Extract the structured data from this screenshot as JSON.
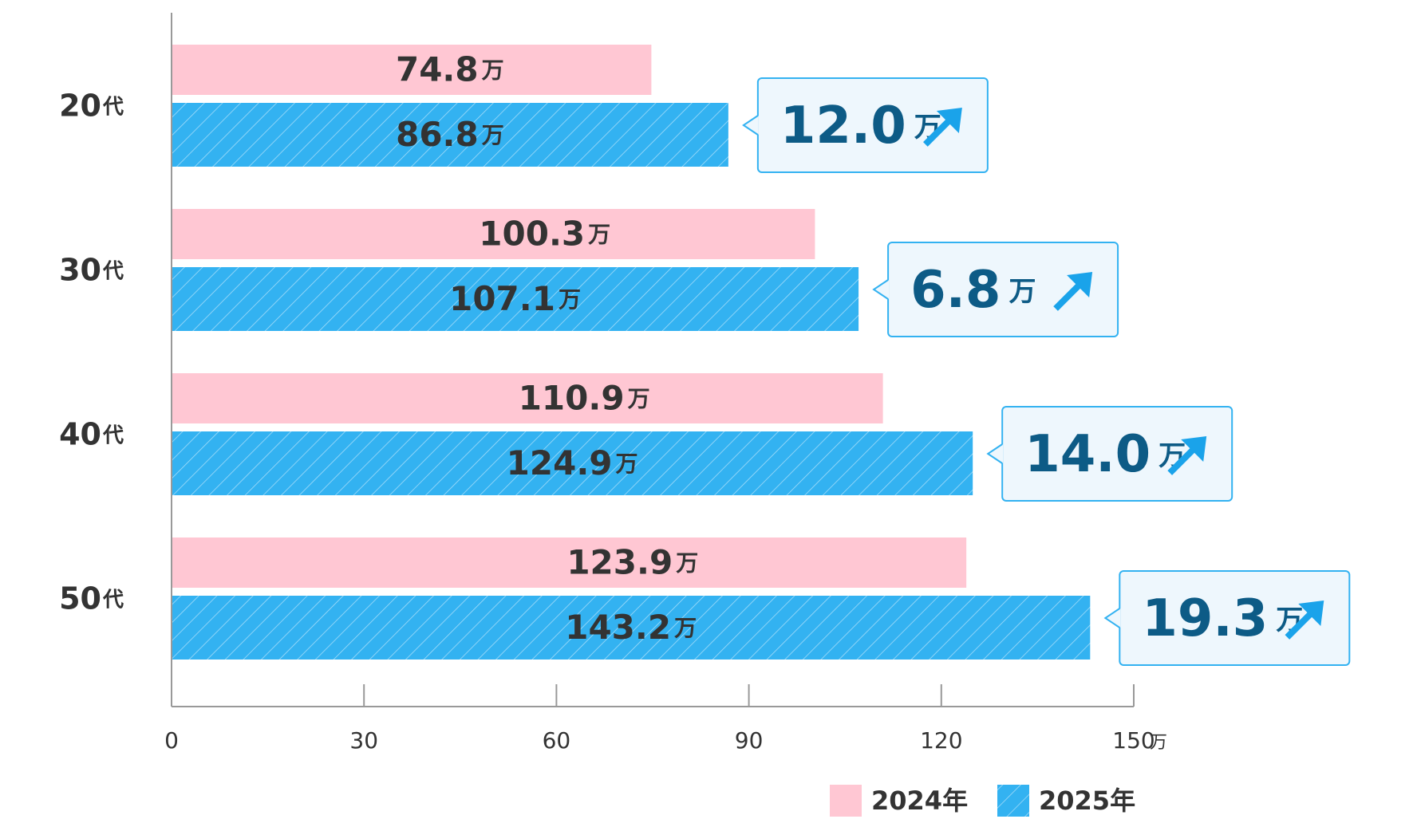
{
  "chart_data": {
    "type": "bar",
    "orientation": "horizontal",
    "categories": [
      "20代",
      "30代",
      "40代",
      "50代"
    ],
    "series": [
      {
        "name": "2024年",
        "values": [
          74.8,
          100.3,
          110.9,
          123.9
        ],
        "color": "#FFC7D3",
        "pattern": "solid"
      },
      {
        "name": "2025年",
        "values": [
          86.8,
          107.1,
          124.9,
          143.2
        ],
        "color": "#33B2F1",
        "pattern": "hatched"
      }
    ],
    "value_unit": "万",
    "x_ticks": [
      0,
      30,
      60,
      90,
      120,
      150
    ],
    "x_tick_labels": [
      "0",
      "30",
      "60",
      "90",
      "120",
      "150"
    ],
    "x_unit_label": "万",
    "xlim": [
      0,
      150
    ],
    "title": "",
    "xlabel": "",
    "ylabel": "",
    "legend_position": "bottom-right",
    "callouts": [
      {
        "category": "20代",
        "value": "12.0",
        "unit": "万",
        "icon": "arrow-up-right-icon"
      },
      {
        "category": "30代",
        "value": "6.8",
        "unit": "万",
        "icon": "arrow-up-right-icon"
      },
      {
        "category": "40代",
        "value": "14.0",
        "unit": "万",
        "icon": "arrow-up-right-icon"
      },
      {
        "category": "50代",
        "value": "19.3",
        "unit": "万",
        "icon": "arrow-up-right-icon"
      }
    ]
  },
  "colors": {
    "axis": "#999999",
    "text": "#333333",
    "callout_bg": "#EEF7FD",
    "callout_border": "#33B2F1",
    "callout_text": "#0D5B86",
    "arrow": "#1AA3EA",
    "hatch_line": "#ffffff"
  }
}
